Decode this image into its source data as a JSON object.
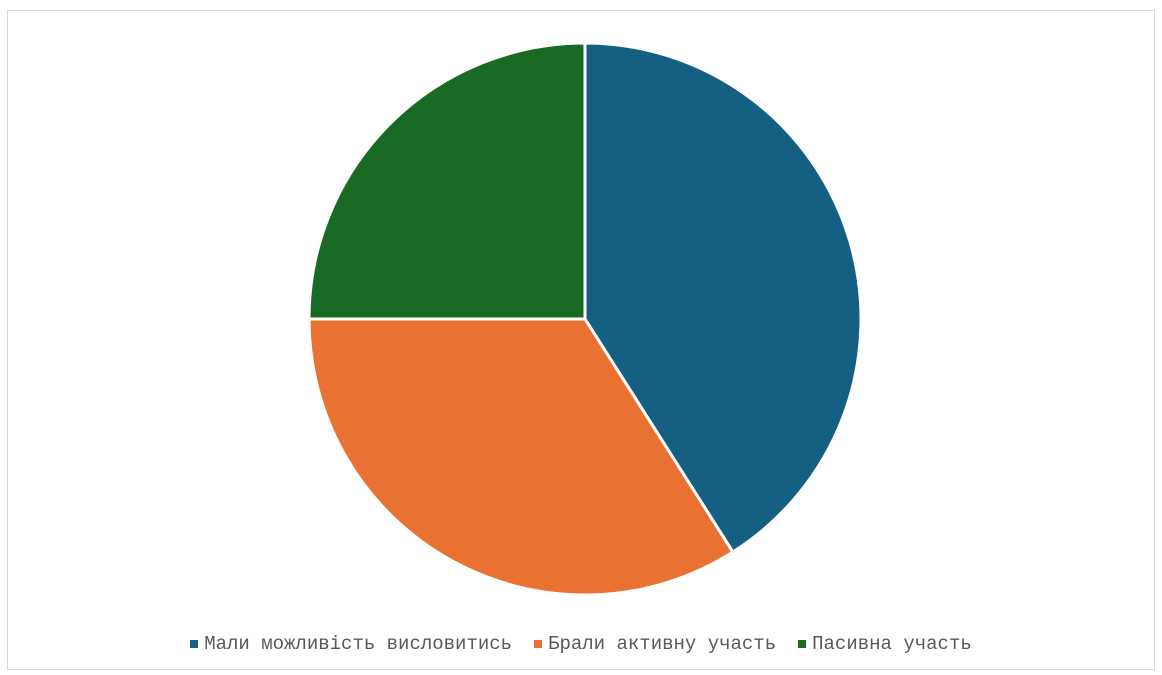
{
  "chart_data": {
    "type": "pie",
    "title": "",
    "categories": [
      "Мали можливість висловитись",
      "Брали активну участь",
      "Пасивна участь"
    ],
    "values": [
      41,
      34,
      25
    ],
    "colors": [
      "#156082",
      "#e97132",
      "#196b24"
    ],
    "start_angle_deg": 0,
    "direction": "clockwise",
    "legend_position": "bottom"
  }
}
